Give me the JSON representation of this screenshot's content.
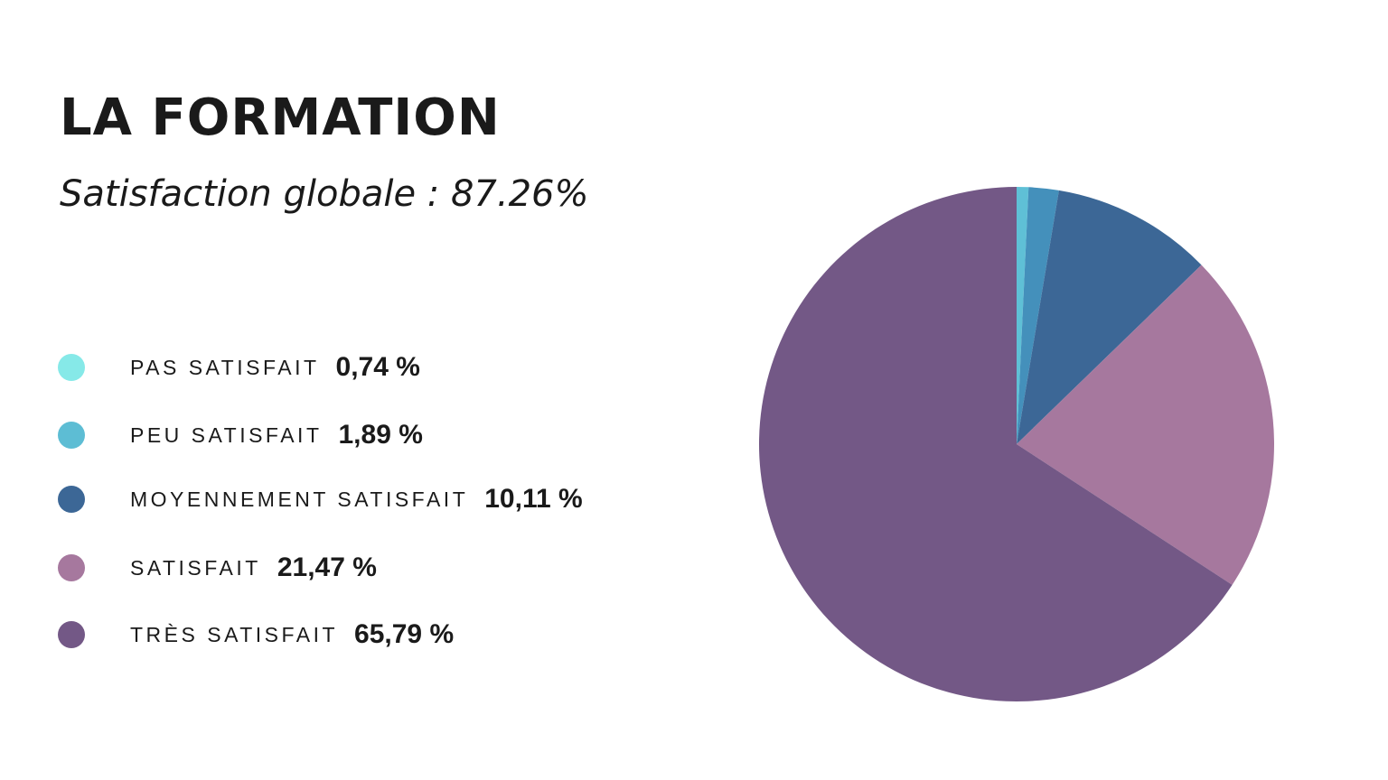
{
  "chart_data": {
    "type": "pie",
    "title": "LA FORMATION",
    "subtitle": "Satisfaction globale : 87.26%",
    "categories": [
      "PAS SATISFAIT",
      "PEU SATISFAIT",
      "MOYENNEMENT SATISFAIT",
      "SATISFAIT",
      "TRÈS SATISFAIT"
    ],
    "values": [
      0.74,
      1.89,
      10.11,
      21.47,
      65.79
    ],
    "value_labels": [
      "0,74 %",
      "1,89 %",
      "10,11 %",
      "21,47 %",
      "65,79 %"
    ],
    "legend_colors": [
      "#86E9E8",
      "#5DBDD4",
      "#3C6796",
      "#A6789E",
      "#735886"
    ],
    "slice_colors": [
      "#5FC0D6",
      "#4490BB",
      "#3C6796",
      "#A6789E",
      "#735886"
    ],
    "start": "top, clockwise",
    "legend_placement": "left"
  }
}
